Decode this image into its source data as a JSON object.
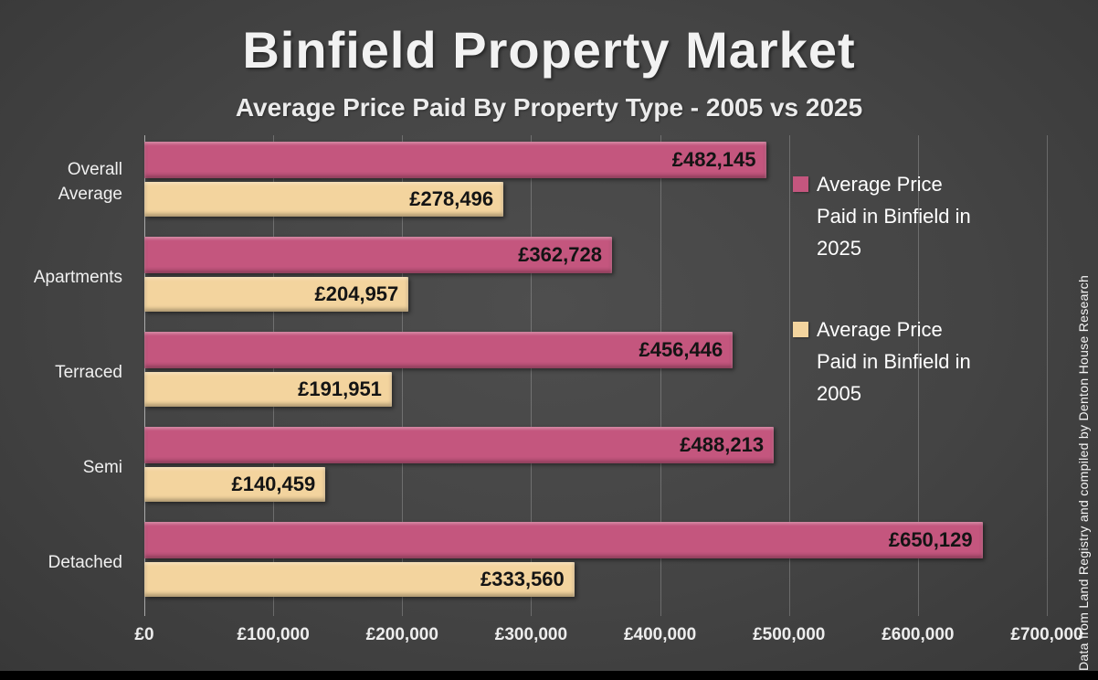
{
  "title": "Binfield Property Market",
  "subtitle": "Average Price Paid By Property Type - 2005 vs 2025",
  "side_note": "Data from Land Registry and compiled by Denton House Research",
  "colors": {
    "series_2025": "#c4567e",
    "series_2005": "#f3d49e",
    "background": "#444444",
    "value_label_text": "#141414",
    "axis_text": "#ededed"
  },
  "chart_data": {
    "type": "bar",
    "orientation": "horizontal",
    "title": "Binfield Property Market",
    "subtitle": "Average Price Paid By Property Type - 2005 vs 2025",
    "categories": [
      "Overall Average",
      "Apartments",
      "Terraced",
      "Semi",
      "Detached"
    ],
    "series": [
      {
        "name": "Average Price Paid in Binfield in 2025",
        "color": "#c4567e",
        "values": [
          482145,
          362728,
          456446,
          488213,
          650129
        ],
        "labels": [
          "£482,145",
          "£362,728",
          "£456,446",
          "£488,213",
          "£650,129"
        ]
      },
      {
        "name": "Average Price Paid in Binfield in 2005",
        "color": "#f3d49e",
        "values": [
          278496,
          204957,
          191951,
          140459,
          333560
        ],
        "labels": [
          "£278,496",
          "£204,957",
          "£191,951",
          "£140,459",
          "£333,560"
        ]
      }
    ],
    "x_axis": {
      "min": 0,
      "max": 700000,
      "tick_interval": 100000,
      "tick_labels": [
        "£0",
        "£100,000",
        "£200,000",
        "£300,000",
        "£400,000",
        "£500,000",
        "£600,000",
        "£700,000"
      ]
    },
    "grid": true,
    "legend_position": "right"
  },
  "legend": [
    {
      "label": "Average Price Paid in Binfield in 2025",
      "color": "#c4567e"
    },
    {
      "label": "Average Price Paid in Binfield in 2005",
      "color": "#f3d49e"
    }
  ]
}
